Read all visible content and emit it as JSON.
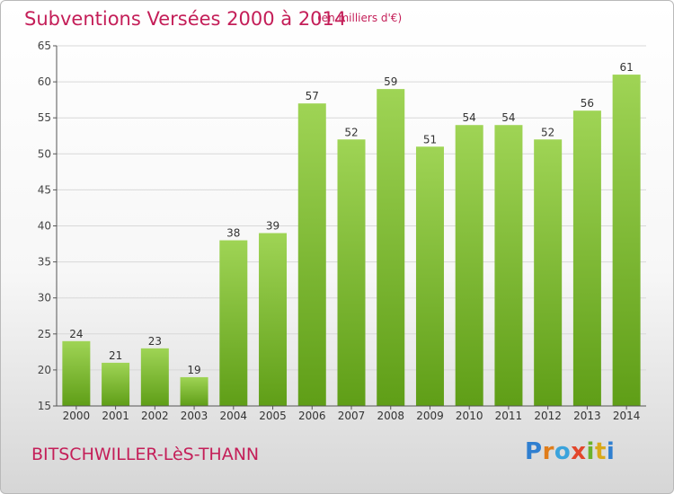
{
  "header": {
    "title": "Subventions Versées 2000 à 2014",
    "subtitle": "(en milliers d'€)"
  },
  "footer": {
    "commune": "BITSCHWILLER-LèS-THANN",
    "logo_letters": [
      "P",
      "r",
      "o",
      "x",
      "i",
      "t",
      "i"
    ]
  },
  "colors": {
    "title": "#c41e58",
    "bar_top": "#9fd455",
    "bar_bottom": "#5f9e17",
    "grid": "#d8d8d8",
    "axis": "#555555"
  },
  "chart_data": {
    "type": "bar",
    "title": "Subventions Versées 2000 à 2014",
    "subtitle": "(en milliers d'€)",
    "categories": [
      "2000",
      "2001",
      "2002",
      "2003",
      "2004",
      "2005",
      "2006",
      "2007",
      "2008",
      "2009",
      "2010",
      "2011",
      "2012",
      "2013",
      "2014"
    ],
    "values": [
      24,
      21,
      23,
      19,
      38,
      39,
      57,
      52,
      59,
      51,
      54,
      54,
      52,
      56,
      61
    ],
    "ylim": [
      15,
      65
    ],
    "yticks": [
      15,
      20,
      25,
      30,
      35,
      40,
      45,
      50,
      55,
      60,
      65
    ],
    "grid": true,
    "data_labels": true,
    "legend": "none"
  }
}
